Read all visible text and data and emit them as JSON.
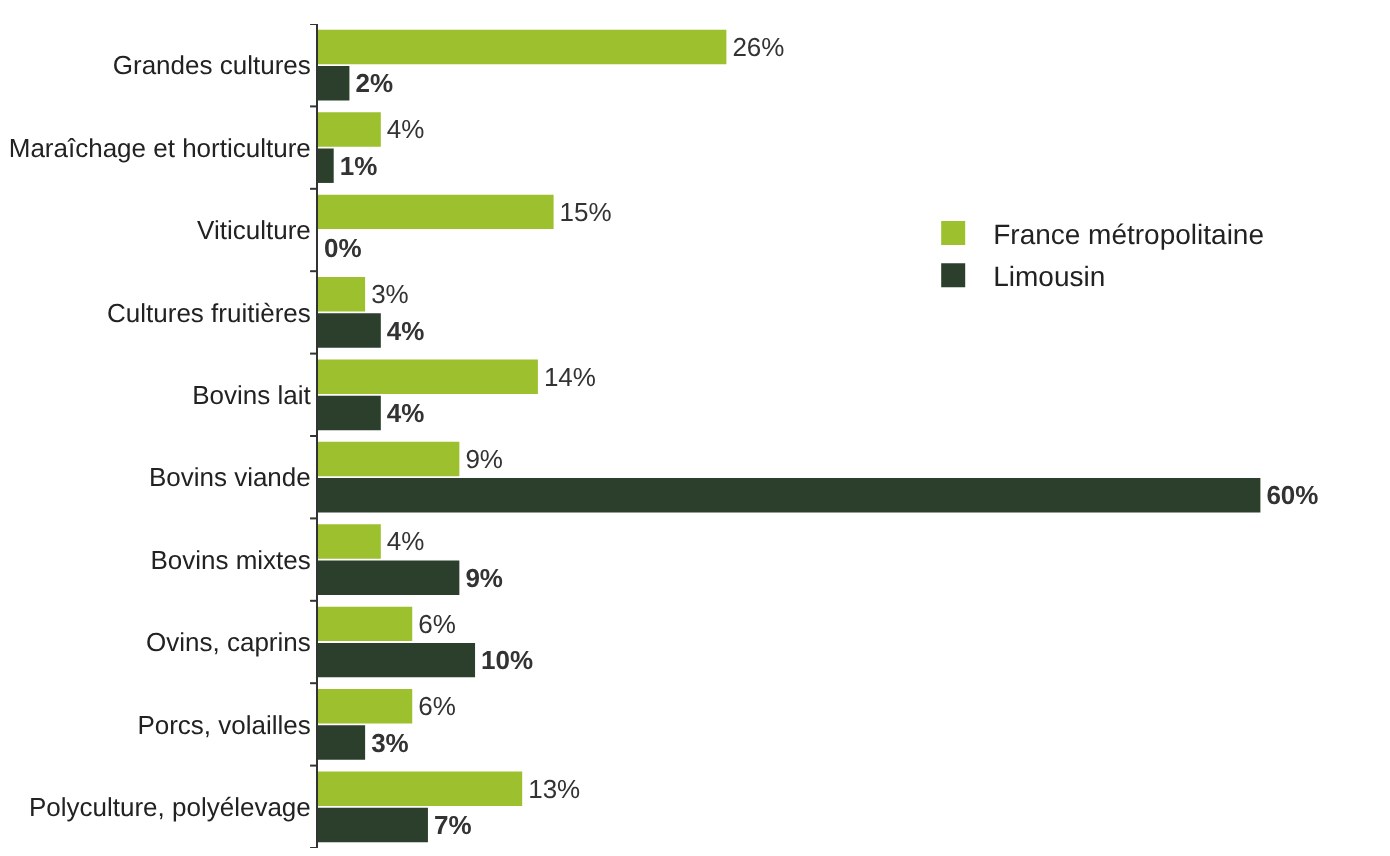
{
  "chart_data": {
    "type": "bar",
    "orientation": "horizontal",
    "legend": "right",
    "grid": false,
    "categories": [
      "Grandes cultures",
      "Maraîchage et horticulture",
      "Viticulture",
      "Cultures fruitières",
      "Bovins lait",
      "Bovins viande",
      "Bovins mixtes",
      "Ovins, caprins",
      "Porcs, volailles",
      "Polyculture, polyélevage"
    ],
    "series": [
      {
        "name": "France métropolitaine",
        "color": "#9dc02e",
        "values": [
          26,
          4,
          15,
          3,
          14,
          9,
          4,
          6,
          6,
          13
        ],
        "value_labels": [
          "26%",
          "4%",
          "15%",
          "3%",
          "14%",
          "9%",
          "4%",
          "6%",
          "6%",
          "13%"
        ]
      },
      {
        "name": "Limousin",
        "color": "#2b3f2c",
        "values": [
          2,
          1,
          0,
          4,
          4,
          60,
          9,
          10,
          3,
          7
        ],
        "value_labels": [
          "2%",
          "1%",
          "0%",
          "4%",
          "4%",
          "60%",
          "9%",
          "10%",
          "3%",
          "7%"
        ]
      }
    ]
  }
}
